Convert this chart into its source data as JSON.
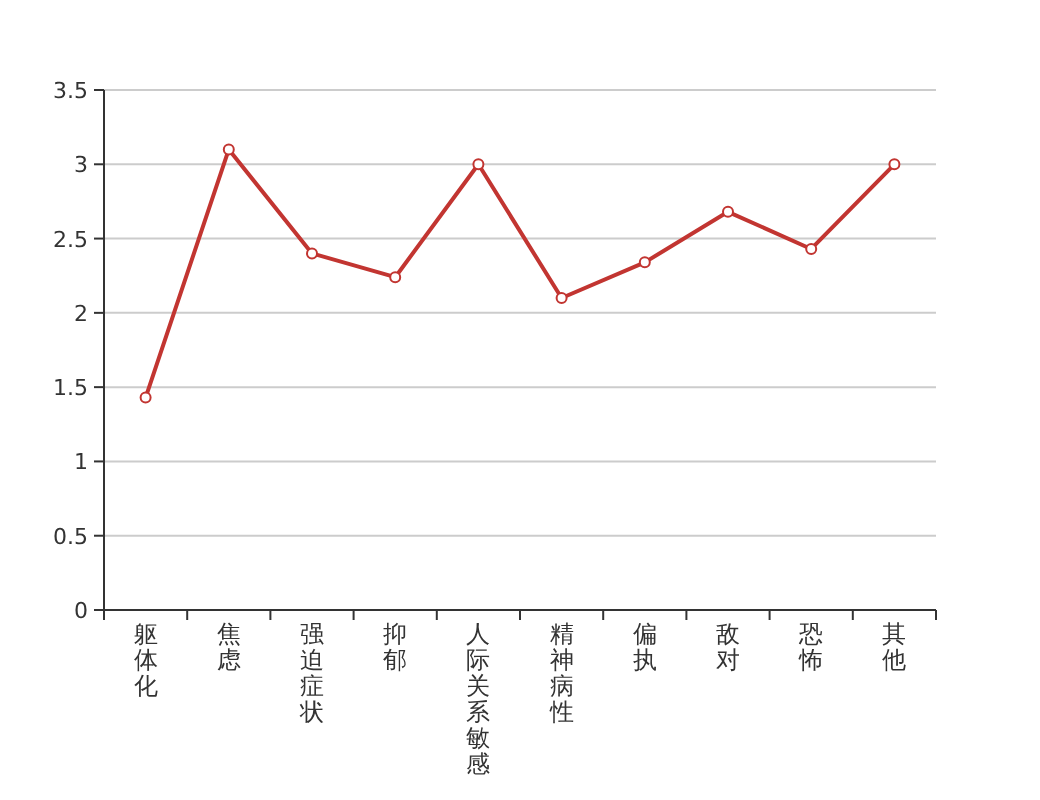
{
  "chart_data": {
    "type": "line",
    "categories": [
      "躯体化",
      "焦虑",
      "强迫症状",
      "抑郁",
      "人际关系敏感",
      "精神病性",
      "偏执",
      "敌对",
      "恐怖",
      "其他"
    ],
    "series": [
      {
        "color": "#c23531",
        "values": [
          1.43,
          3.1,
          2.4,
          2.24,
          3.0,
          2.1,
          2.34,
          2.68,
          2.43,
          3.0
        ]
      }
    ],
    "ylim": [
      0,
      3.5
    ],
    "yticks": [
      0,
      0.5,
      1,
      1.5,
      2,
      2.5,
      3,
      3.5
    ],
    "grid": "y",
    "marker": "circle",
    "line_style": "solid"
  }
}
